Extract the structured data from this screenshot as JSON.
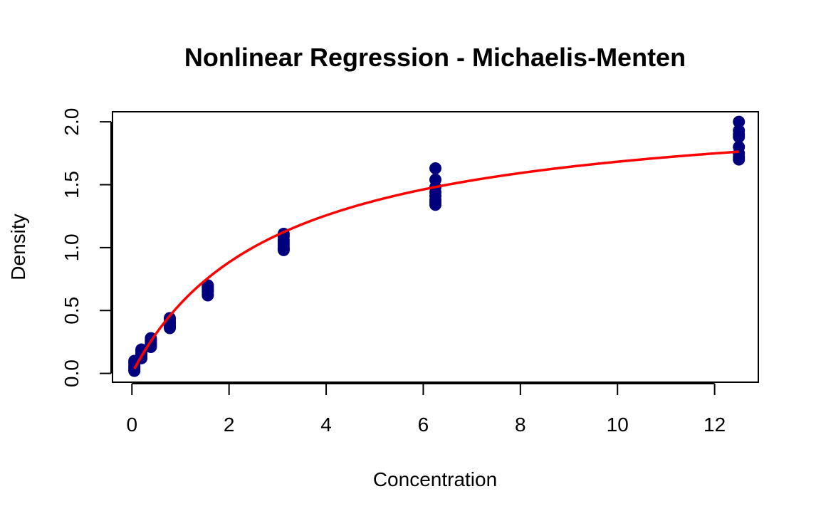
{
  "chart_data": {
    "type": "scatter",
    "title": "Nonlinear Regression - Michaelis-Menten",
    "xlabel": "Concentration",
    "ylabel": "Density",
    "xlim": [
      -0.4,
      12.9
    ],
    "ylim": [
      -0.07,
      2.08
    ],
    "xticks": [
      0,
      2,
      4,
      6,
      8,
      10,
      12
    ],
    "yticks": [
      0.0,
      0.5,
      1.0,
      1.5,
      2.0
    ],
    "xtick_labels": [
      "0",
      "2",
      "4",
      "6",
      "8",
      "10",
      "12"
    ],
    "ytick_labels": [
      "0.0",
      "0.5",
      "1.0",
      "1.5",
      "2.0"
    ],
    "grid": false,
    "points": {
      "color": "#00007f",
      "x": [
        0.05,
        0.05,
        0.05,
        0.05,
        0.05,
        0.05,
        0.05,
        0.05,
        0.195,
        0.195,
        0.195,
        0.195,
        0.195,
        0.195,
        0.195,
        0.195,
        0.39,
        0.39,
        0.39,
        0.39,
        0.39,
        0.39,
        0.39,
        0.39,
        0.78,
        0.78,
        0.78,
        0.78,
        0.78,
        0.78,
        0.78,
        0.78,
        1.5625,
        1.5625,
        1.5625,
        1.5625,
        1.5625,
        1.5625,
        1.5625,
        1.5625,
        3.125,
        3.125,
        3.125,
        3.125,
        3.125,
        3.125,
        3.125,
        3.125,
        6.25,
        6.25,
        6.25,
        6.25,
        6.25,
        6.25,
        6.25,
        6.25,
        12.5,
        12.5,
        12.5,
        12.5,
        12.5,
        12.5,
        12.5,
        12.5
      ],
      "y": [
        0.02,
        0.03,
        0.04,
        0.05,
        0.06,
        0.08,
        0.09,
        0.1,
        0.12,
        0.13,
        0.14,
        0.15,
        0.16,
        0.17,
        0.18,
        0.19,
        0.21,
        0.22,
        0.23,
        0.24,
        0.25,
        0.26,
        0.27,
        0.28,
        0.36,
        0.37,
        0.38,
        0.39,
        0.4,
        0.41,
        0.43,
        0.44,
        0.62,
        0.63,
        0.65,
        0.66,
        0.67,
        0.68,
        0.69,
        0.7,
        0.98,
        0.99,
        1.0,
        1.02,
        1.04,
        1.06,
        1.09,
        1.11,
        1.34,
        1.36,
        1.38,
        1.41,
        1.44,
        1.48,
        1.54,
        1.63,
        1.7,
        1.72,
        1.75,
        1.8,
        1.88,
        1.9,
        1.93,
        2.0
      ]
    },
    "fit_curve": {
      "color": "#ff0000",
      "model": "Michaelis-Menten",
      "vmax": 2.175,
      "km": 2.925,
      "x_range": [
        0.05,
        12.5
      ]
    }
  }
}
